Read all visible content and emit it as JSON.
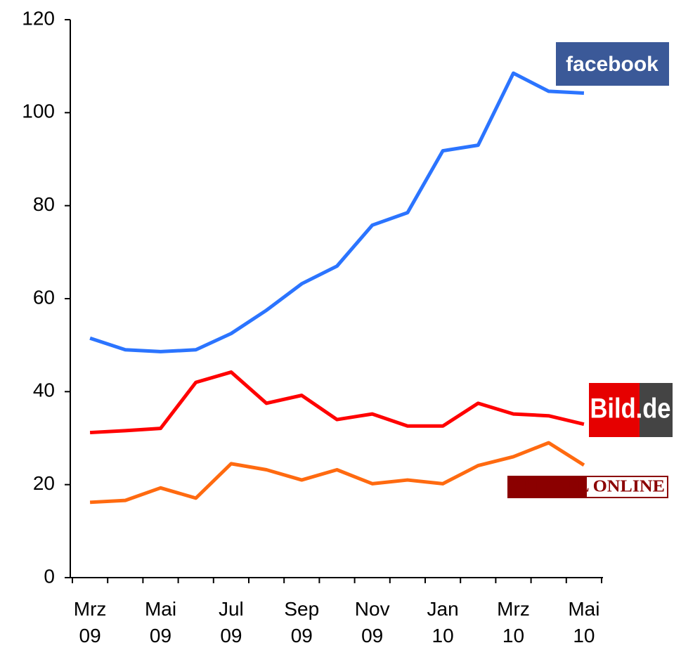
{
  "chart_data": {
    "type": "line",
    "categories": [
      "Mrz 09",
      null,
      "Mai 09",
      null,
      "Jul 09",
      null,
      "Sep 09",
      null,
      "Nov 09",
      null,
      "Jan 10",
      null,
      "Mrz 10",
      null,
      "Mai 10"
    ],
    "series": [
      {
        "name": "facebook",
        "color": "#2b74ff",
        "values": [
          51.5,
          49,
          48.6,
          49,
          52.5,
          57.5,
          63.2,
          67,
          75.8,
          78.5,
          91.8,
          93,
          108.5,
          104.6,
          104.2
        ]
      },
      {
        "name": "Bild.de",
        "color": "#ff0000",
        "values": [
          31.2,
          31.6,
          32.1,
          42,
          44.2,
          37.5,
          39.2,
          34,
          35.2,
          32.6,
          32.6,
          37.5,
          35.2,
          34.8,
          33
        ]
      },
      {
        "name": "SPIEGEL ONLINE",
        "color": "#ff6a10",
        "values": [
          16.2,
          16.6,
          19.3,
          17.1,
          24.5,
          23.2,
          21,
          23.2,
          20.2,
          21,
          20.2,
          24.1,
          26,
          29,
          24.2
        ]
      }
    ],
    "ylim": [
      0,
      120
    ],
    "yticks": [
      0,
      20,
      40,
      60,
      80,
      100,
      120
    ]
  }
}
